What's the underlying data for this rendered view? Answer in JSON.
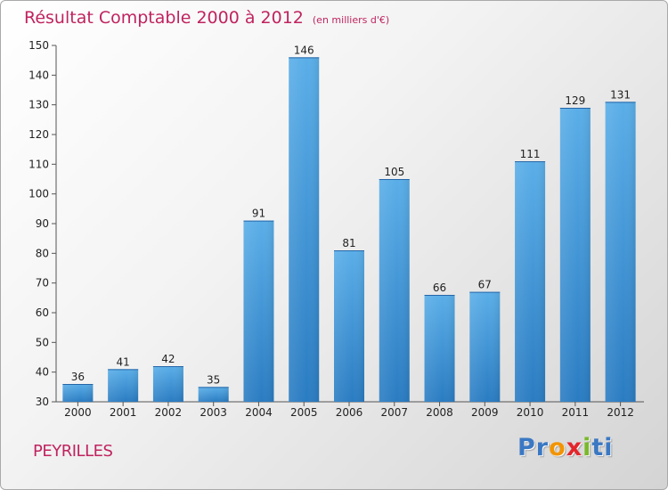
{
  "header": {
    "title": "Résultat Comptable 2000 à 2012",
    "unit": "(en milliers d'€)"
  },
  "commune": "PEYRILLES",
  "logo": {
    "letters": [
      "P",
      "r",
      "o",
      "x",
      "i",
      "t",
      "i"
    ],
    "colors": [
      "#3a78c3",
      "#3a78c3",
      "#f29400",
      "#e3262c",
      "#7ab929",
      "#3a78c3",
      "#3a78c3"
    ]
  },
  "colors": {
    "title": "#c0235f",
    "bar_light": "#5aaee8",
    "bar_dark": "#2a7cc2"
  },
  "chart_data": {
    "type": "bar",
    "title": "Résultat Comptable 2000 à 2012",
    "subtitle": "(en milliers d'€)",
    "xlabel": "",
    "ylabel": "",
    "categories": [
      "2000",
      "2001",
      "2002",
      "2003",
      "2004",
      "2005",
      "2006",
      "2007",
      "2008",
      "2009",
      "2010",
      "2011",
      "2012"
    ],
    "values": [
      36,
      41,
      42,
      35,
      91,
      146,
      81,
      105,
      66,
      67,
      111,
      129,
      131
    ],
    "ylim": [
      30,
      150
    ],
    "yticks": [
      30,
      40,
      50,
      60,
      70,
      80,
      90,
      100,
      110,
      120,
      130,
      140,
      150
    ],
    "grid": false,
    "legend": "none"
  }
}
